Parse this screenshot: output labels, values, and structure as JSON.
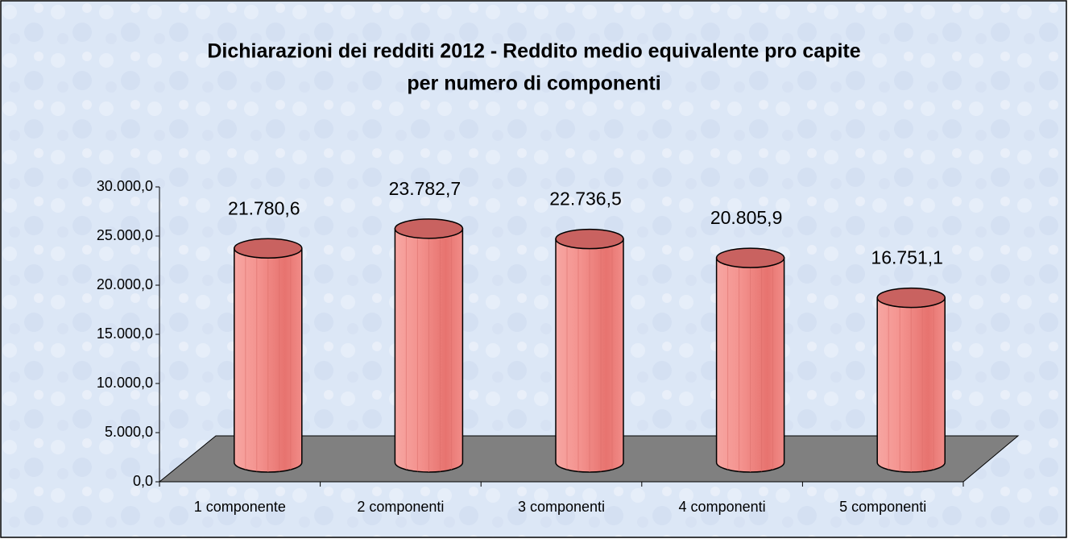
{
  "chart_data": {
    "type": "bar3d",
    "title": [
      "Dichiarazioni dei redditi 2012 - Reddito medio equivalente pro capite",
      "per numero di componenti"
    ],
    "categories": [
      "1 componente",
      "2 componenti",
      "3 componenti",
      "4 componenti",
      "5 componenti"
    ],
    "values": [
      21780.6,
      23782.7,
      22736.5,
      20805.9,
      16751.1
    ],
    "value_labels": [
      "21.780,6",
      "23.782,7",
      "22.736,5",
      "20.805,9",
      "16.751,1"
    ],
    "color": "#f08a86",
    "ylim": [
      0,
      30000
    ],
    "yticks": [
      {
        "value": 0,
        "label": "0,0"
      },
      {
        "value": 5000,
        "label": "5.000,0"
      },
      {
        "value": 10000,
        "label": "10.000,0"
      },
      {
        "value": 15000,
        "label": "15.000,0"
      },
      {
        "value": 20000,
        "label": "20.000,0"
      },
      {
        "value": 25000,
        "label": "25.000,0"
      },
      {
        "value": 30000,
        "label": "30.000,0"
      }
    ],
    "grid": false
  }
}
